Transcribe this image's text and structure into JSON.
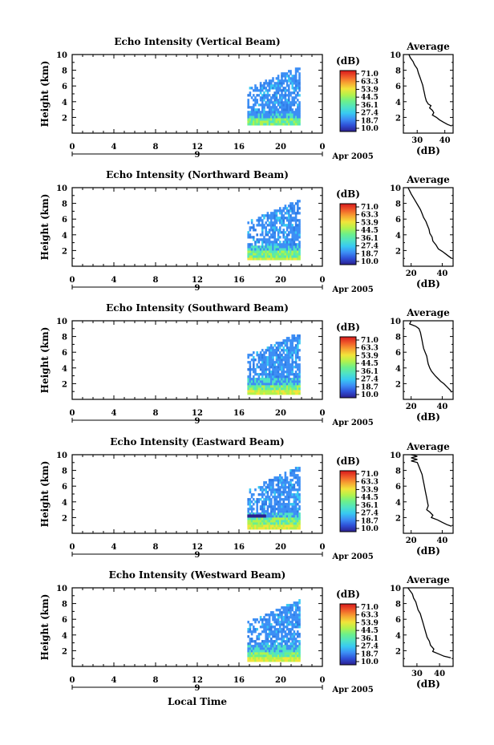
{
  "figure": {
    "y_label": "Height (km)",
    "x_label": "Local Time",
    "date_label": "Apr 2005",
    "day_marker": "9",
    "avg_title": "Average",
    "avg_xlabel": "(dB)",
    "colorbar_unit": "(dB)",
    "colorbar_ticks": [
      "71.0",
      "63.3",
      "53.9",
      "44.5",
      "36.1",
      "27.4",
      "18.7",
      "10.0"
    ],
    "colors": {
      "scale": [
        "#2b1f8f",
        "#2e4fd6",
        "#3c8ef5",
        "#38c9f2",
        "#4fe3c4",
        "#6cf08a",
        "#b2f24c",
        "#f1e53a",
        "#f7a332",
        "#f05a2a",
        "#d7191c"
      ]
    }
  },
  "chart_data": [
    {
      "type": "heatmap",
      "title": "Echo Intensity (Vertical Beam)",
      "xlabel": "",
      "ylabel": "Height (km)",
      "xlim": [
        0,
        24
      ],
      "ylim": [
        0,
        10
      ],
      "x_ticks": [
        "0",
        "4",
        "8",
        "12",
        "16",
        "20",
        "0"
      ],
      "y_ticks": [
        "2",
        "4",
        "6",
        "8",
        "10"
      ],
      "data_extent": {
        "x": [
          16.8,
          21.8
        ],
        "y": [
          1.0,
          8.2
        ]
      },
      "profile": {
        "title": "Average",
        "xlabel": "(dB)",
        "x_ticks": [
          "30",
          "40"
        ],
        "xlim": [
          25,
          43
        ],
        "y_ticks": [
          "2",
          "4",
          "6",
          "8",
          "10"
        ],
        "points": [
          [
            27,
            10
          ],
          [
            27.5,
            9.6
          ],
          [
            28.5,
            9.1
          ],
          [
            29,
            8.7
          ],
          [
            30,
            8.2
          ],
          [
            30.5,
            7.6
          ],
          [
            31,
            7.1
          ],
          [
            31.5,
            6.6
          ],
          [
            32,
            6.1
          ],
          [
            32.3,
            5.6
          ],
          [
            32.6,
            5.1
          ],
          [
            32.9,
            4.6
          ],
          [
            33.3,
            4.1
          ],
          [
            34,
            3.7
          ],
          [
            35,
            3.5
          ],
          [
            34.5,
            3.2
          ],
          [
            35.5,
            2.9
          ],
          [
            36,
            2.6
          ],
          [
            35.5,
            2.3
          ],
          [
            37,
            2.0
          ],
          [
            38,
            1.7
          ],
          [
            39.5,
            1.4
          ],
          [
            41,
            1.1
          ],
          [
            42.5,
            0.9
          ]
        ]
      }
    },
    {
      "type": "heatmap",
      "title": "Echo Intensity (Northward Beam)",
      "xlabel": "",
      "ylabel": "Height (km)",
      "xlim": [
        0,
        24
      ],
      "ylim": [
        0,
        10
      ],
      "x_ticks": [
        "0",
        "4",
        "8",
        "12",
        "16",
        "20",
        "0"
      ],
      "y_ticks": [
        "2",
        "4",
        "6",
        "8",
        "10"
      ],
      "data_extent": {
        "x": [
          16.8,
          21.8
        ],
        "y": [
          0.8,
          8.7
        ]
      },
      "profile": {
        "title": "Average",
        "xlabel": "(dB)",
        "x_ticks": [
          "20",
          "40"
        ],
        "xlim": [
          15,
          47
        ],
        "y_ticks": [
          "2",
          "4",
          "6",
          "8",
          "10"
        ],
        "points": [
          [
            18,
            10
          ],
          [
            19,
            9.6
          ],
          [
            20,
            9.2
          ],
          [
            21.5,
            8.7
          ],
          [
            23,
            8.2
          ],
          [
            24.5,
            7.7
          ],
          [
            26,
            7.2
          ],
          [
            27,
            6.7
          ],
          [
            28,
            6.2
          ],
          [
            29.5,
            5.7
          ],
          [
            30.5,
            5.2
          ],
          [
            31.5,
            4.7
          ],
          [
            32,
            4.2
          ],
          [
            33.5,
            3.7
          ],
          [
            34,
            3.2
          ],
          [
            36,
            2.7
          ],
          [
            37.5,
            2.2
          ],
          [
            40,
            1.9
          ],
          [
            42,
            1.6
          ],
          [
            44,
            1.3
          ],
          [
            46,
            1.0
          ]
        ]
      }
    },
    {
      "type": "heatmap",
      "title": "Echo Intensity (Southward Beam)",
      "xlabel": "",
      "ylabel": "Height (km)",
      "xlim": [
        0,
        24
      ],
      "ylim": [
        0,
        10
      ],
      "x_ticks": [
        "0",
        "4",
        "8",
        "12",
        "16",
        "20",
        "0"
      ],
      "y_ticks": [
        "2",
        "4",
        "6",
        "8",
        "10"
      ],
      "data_extent": {
        "x": [
          16.8,
          21.8
        ],
        "y": [
          0.6,
          8.0
        ]
      },
      "profile": {
        "title": "Average",
        "xlabel": "(dB)",
        "x_ticks": [
          "20",
          "40"
        ],
        "xlim": [
          15,
          47
        ],
        "y_ticks": [
          "2",
          "4",
          "6",
          "8",
          "10"
        ],
        "points": [
          [
            20,
            10
          ],
          [
            19,
            9.6
          ],
          [
            23,
            9.3
          ],
          [
            25,
            9.0
          ],
          [
            26,
            8.5
          ],
          [
            26.5,
            8.0
          ],
          [
            27,
            7.5
          ],
          [
            27.5,
            7.0
          ],
          [
            28,
            6.5
          ],
          [
            29,
            6.0
          ],
          [
            30,
            5.5
          ],
          [
            30.5,
            5.0
          ],
          [
            31,
            4.5
          ],
          [
            32,
            4.0
          ],
          [
            33,
            3.6
          ],
          [
            35.5,
            3.0
          ],
          [
            37,
            2.7
          ],
          [
            39,
            2.3
          ],
          [
            41,
            2.0
          ],
          [
            43,
            1.6
          ],
          [
            45,
            1.2
          ],
          [
            46,
            0.9
          ]
        ]
      }
    },
    {
      "type": "heatmap",
      "title": "Echo Intensity (Eastward Beam)",
      "xlabel": "",
      "ylabel": "Height (km)",
      "xlim": [
        0,
        24
      ],
      "ylim": [
        0,
        10
      ],
      "x_ticks": [
        "0",
        "4",
        "8",
        "12",
        "16",
        "20",
        "0"
      ],
      "y_ticks": [
        "2",
        "4",
        "6",
        "8",
        "10"
      ],
      "data_extent": {
        "x": [
          16.8,
          21.8
        ],
        "y": [
          0.5,
          8.5
        ]
      },
      "profile": {
        "title": "Average",
        "xlabel": "(dB)",
        "x_ticks": [
          "20",
          "40"
        ],
        "xlim": [
          15,
          47
        ],
        "y_ticks": [
          "2",
          "4",
          "6",
          "8",
          "10"
        ],
        "points": [
          [
            20,
            10
          ],
          [
            24,
            9.8
          ],
          [
            20,
            9.6
          ],
          [
            24,
            9.4
          ],
          [
            20,
            9.2
          ],
          [
            24,
            9.0
          ],
          [
            25,
            8.5
          ],
          [
            26,
            8.0
          ],
          [
            27,
            7.5
          ],
          [
            27.5,
            7.0
          ],
          [
            28,
            6.5
          ],
          [
            28.5,
            6.0
          ],
          [
            29,
            5.5
          ],
          [
            29.5,
            5.0
          ],
          [
            30,
            4.5
          ],
          [
            30.5,
            4.0
          ],
          [
            31,
            3.5
          ],
          [
            30,
            3.0
          ],
          [
            32,
            2.7
          ],
          [
            34,
            2.3
          ],
          [
            33,
            2.0
          ],
          [
            37,
            1.7
          ],
          [
            40,
            1.4
          ],
          [
            43,
            1.1
          ],
          [
            46,
            0.9
          ]
        ]
      }
    },
    {
      "type": "heatmap",
      "title": "Echo Intensity (Westward Beam)",
      "xlabel": "Local Time",
      "ylabel": "Height (km)",
      "xlim": [
        0,
        24
      ],
      "ylim": [
        0,
        10
      ],
      "x_ticks": [
        "0",
        "4",
        "8",
        "12",
        "16",
        "20",
        "0"
      ],
      "y_ticks": [
        "2",
        "4",
        "6",
        "8",
        "10"
      ],
      "data_extent": {
        "x": [
          16.8,
          21.8
        ],
        "y": [
          0.6,
          9.5
        ]
      },
      "profile": {
        "title": "Average",
        "xlabel": "(dB)",
        "x_ticks": [
          "30",
          "40"
        ],
        "xlim": [
          24,
          46
        ],
        "y_ticks": [
          "2",
          "4",
          "6",
          "8",
          "10"
        ],
        "points": [
          [
            26,
            10
          ],
          [
            27,
            9.6
          ],
          [
            28,
            9.2
          ],
          [
            28.5,
            8.7
          ],
          [
            29.5,
            8.2
          ],
          [
            30,
            7.7
          ],
          [
            30.5,
            7.2
          ],
          [
            31.5,
            6.7
          ],
          [
            32,
            6.2
          ],
          [
            32.5,
            5.7
          ],
          [
            33,
            5.2
          ],
          [
            33.5,
            4.7
          ],
          [
            34,
            4.2
          ],
          [
            34.5,
            3.7
          ],
          [
            35.5,
            3.2
          ],
          [
            36,
            2.7
          ],
          [
            37.5,
            2.2
          ],
          [
            37,
            1.9
          ],
          [
            39.5,
            1.6
          ],
          [
            42,
            1.3
          ],
          [
            45,
            1.1
          ]
        ]
      }
    }
  ]
}
